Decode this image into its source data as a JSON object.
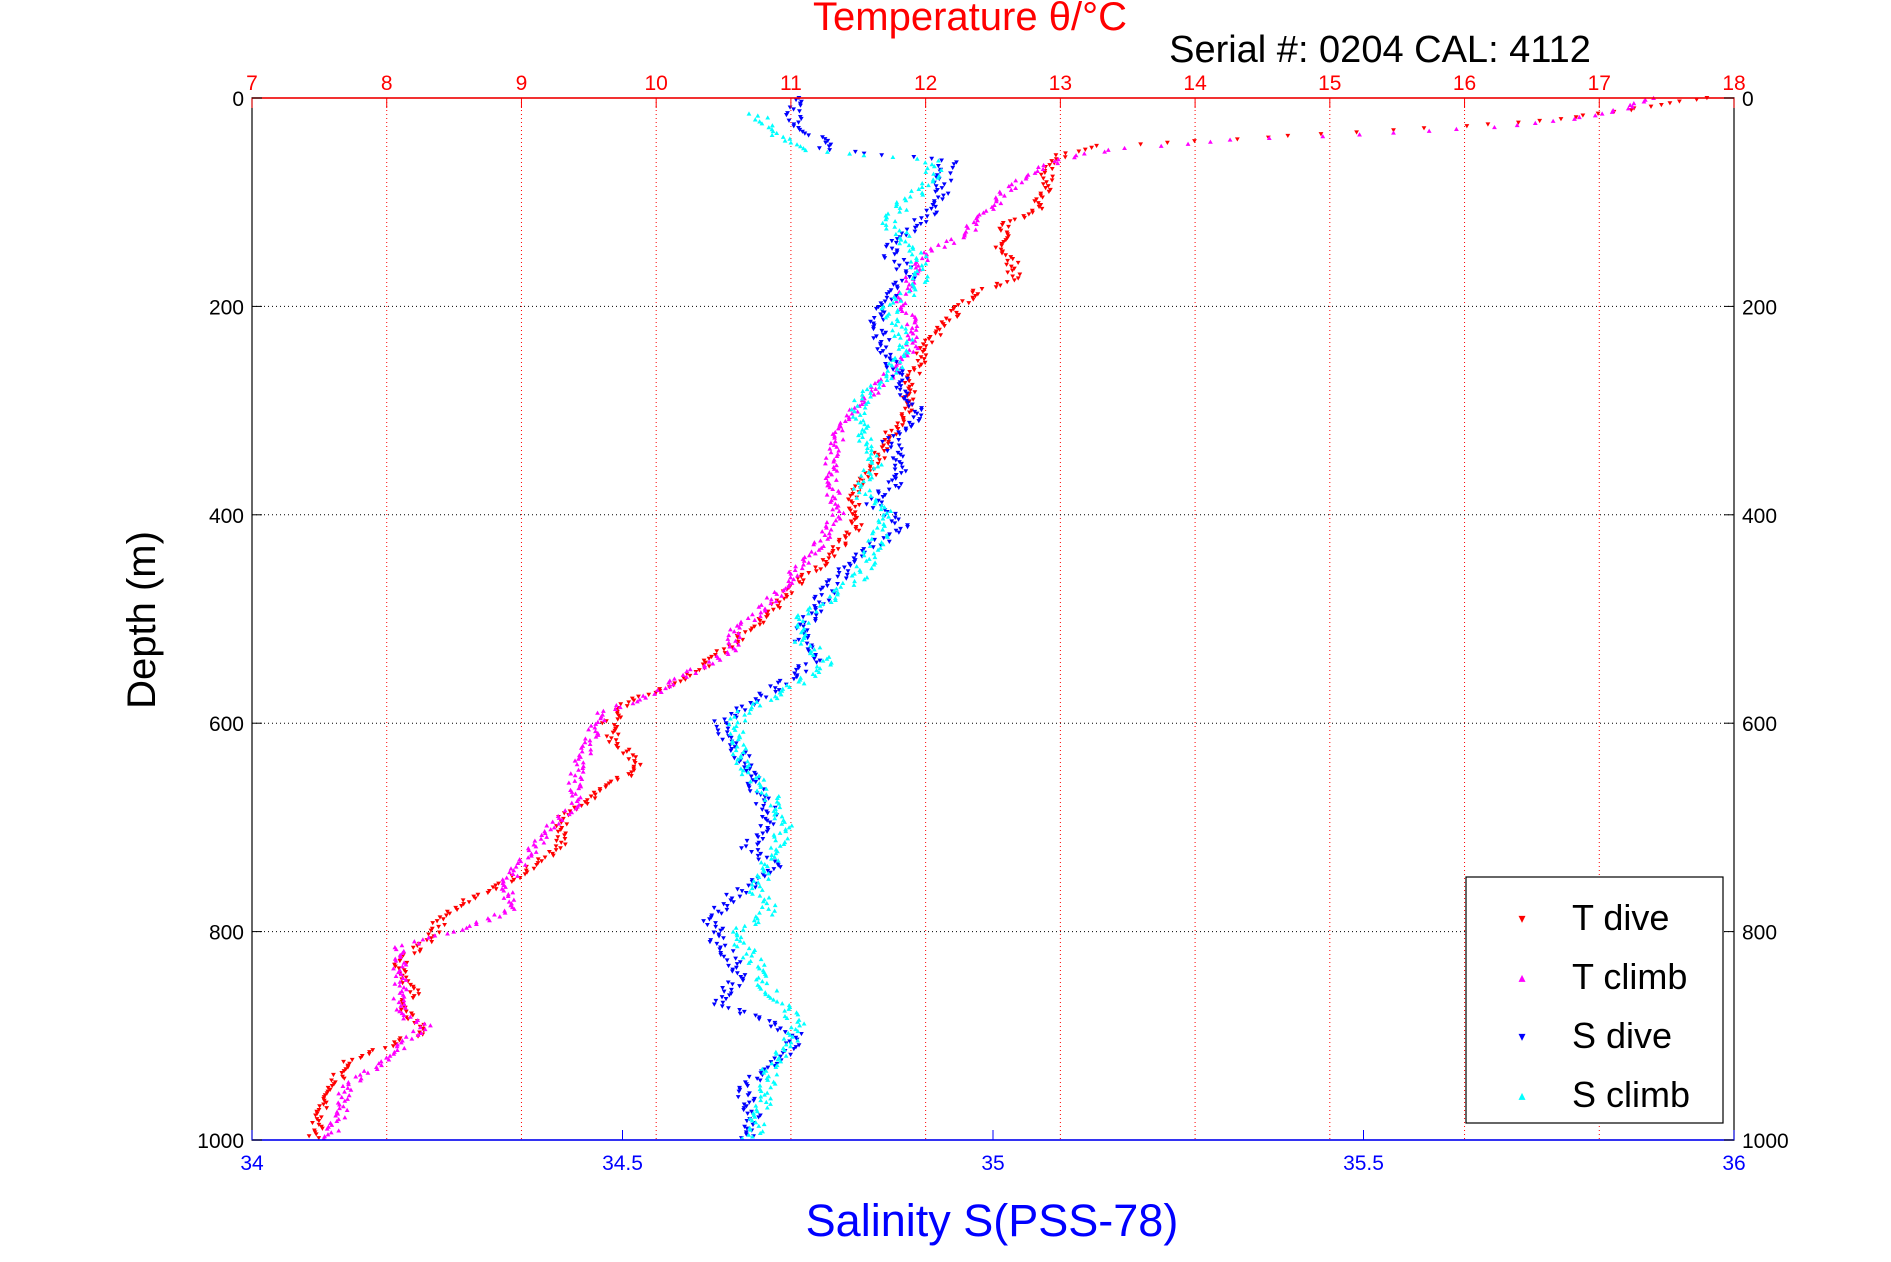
{
  "chart_data": {
    "type": "scatter",
    "title": "Temperature θ/°C",
    "subtitle": "Serial #: 0204  CAL: 4112",
    "ylabel": "Depth (m)",
    "x2label": "Salinity S(PSS-78)",
    "ylim": [
      0,
      1000
    ],
    "y_reversed": true,
    "y_ticks": [
      0,
      200,
      400,
      600,
      800,
      1000
    ],
    "temperature_axis": {
      "position": "top",
      "range": [
        7,
        18
      ],
      "ticks": [
        7,
        8,
        9,
        10,
        11,
        12,
        13,
        14,
        15,
        16,
        17,
        18
      ],
      "color": "#ff0000",
      "grid": "dotted-red"
    },
    "salinity_axis": {
      "position": "bottom",
      "range": [
        34,
        36
      ],
      "ticks": [
        "34",
        "34.5",
        "35",
        "35.5",
        "36"
      ],
      "color": "#0000ff"
    },
    "depth_grid": "dotted-black",
    "legend": {
      "position": "bottom-right",
      "entries": [
        "T dive",
        "T climb",
        "S dive",
        "S climb"
      ]
    },
    "series": [
      {
        "name": "T dive",
        "axis": "temperature",
        "color": "#ff0000",
        "marker": "triangle-down",
        "points": [
          [
            17.8,
            0
          ],
          [
            17.3,
            10
          ],
          [
            17.0,
            15
          ],
          [
            16.6,
            22
          ],
          [
            16.0,
            27
          ],
          [
            15.2,
            33
          ],
          [
            14.5,
            38
          ],
          [
            13.8,
            43
          ],
          [
            13.3,
            46
          ],
          [
            13.0,
            55
          ],
          [
            12.9,
            70
          ],
          [
            12.9,
            90
          ],
          [
            12.8,
            110
          ],
          [
            12.6,
            120
          ],
          [
            12.55,
            140
          ],
          [
            12.65,
            160
          ],
          [
            12.65,
            175
          ],
          [
            12.4,
            185
          ],
          [
            12.3,
            195
          ],
          [
            12.2,
            210
          ],
          [
            12.0,
            240
          ],
          [
            11.9,
            270
          ],
          [
            11.85,
            300
          ],
          [
            11.7,
            330
          ],
          [
            11.6,
            360
          ],
          [
            11.45,
            380
          ],
          [
            11.5,
            410
          ],
          [
            11.3,
            440
          ],
          [
            11.0,
            470
          ],
          [
            10.8,
            500
          ],
          [
            10.6,
            520
          ],
          [
            10.2,
            560
          ],
          [
            9.8,
            580
          ],
          [
            9.65,
            600
          ],
          [
            9.7,
            620
          ],
          [
            9.9,
            640
          ],
          [
            9.6,
            665
          ],
          [
            9.3,
            690
          ],
          [
            9.3,
            720
          ],
          [
            9.0,
            745
          ],
          [
            8.6,
            770
          ],
          [
            8.4,
            790
          ],
          [
            8.3,
            810
          ],
          [
            8.1,
            830
          ],
          [
            8.2,
            860
          ],
          [
            8.1,
            875
          ],
          [
            8.3,
            895
          ],
          [
            8.0,
            910
          ],
          [
            7.7,
            925
          ],
          [
            7.6,
            950
          ],
          [
            7.5,
            980
          ],
          [
            7.45,
            1000
          ]
        ]
      },
      {
        "name": "T climb",
        "axis": "temperature",
        "color": "#ff00ff",
        "marker": "triangle-up",
        "points": [
          [
            17.4,
            0
          ],
          [
            17.2,
            10
          ],
          [
            16.8,
            20
          ],
          [
            16.2,
            28
          ],
          [
            15.2,
            35
          ],
          [
            14.3,
            40
          ],
          [
            13.5,
            48
          ],
          [
            13.1,
            55
          ],
          [
            12.8,
            70
          ],
          [
            12.6,
            90
          ],
          [
            12.45,
            110
          ],
          [
            12.3,
            130
          ],
          [
            12.0,
            150
          ],
          [
            11.9,
            170
          ],
          [
            11.8,
            195
          ],
          [
            11.9,
            210
          ],
          [
            11.9,
            240
          ],
          [
            11.7,
            270
          ],
          [
            11.4,
            310
          ],
          [
            11.3,
            340
          ],
          [
            11.3,
            370
          ],
          [
            11.35,
            400
          ],
          [
            11.2,
            430
          ],
          [
            11.0,
            460
          ],
          [
            10.8,
            490
          ],
          [
            10.6,
            510
          ],
          [
            10.55,
            530
          ],
          [
            10.0,
            570
          ],
          [
            9.6,
            590
          ],
          [
            9.5,
            620
          ],
          [
            9.4,
            650
          ],
          [
            9.4,
            680
          ],
          [
            9.2,
            700
          ],
          [
            9.1,
            720
          ],
          [
            8.9,
            750
          ],
          [
            8.9,
            780
          ],
          [
            8.5,
            800
          ],
          [
            8.1,
            815
          ],
          [
            8.1,
            850
          ],
          [
            8.1,
            880
          ],
          [
            8.3,
            890
          ],
          [
            7.9,
            930
          ],
          [
            7.7,
            950
          ],
          [
            7.65,
            980
          ],
          [
            7.55,
            1000
          ]
        ]
      },
      {
        "name": "S dive",
        "axis": "salinity",
        "color": "#0000ff",
        "marker": "triangle-down",
        "points": [
          [
            34.74,
            0
          ],
          [
            34.73,
            20
          ],
          [
            34.78,
            50
          ],
          [
            34.94,
            60
          ],
          [
            34.93,
            90
          ],
          [
            34.92,
            110
          ],
          [
            34.88,
            130
          ],
          [
            34.86,
            150
          ],
          [
            34.89,
            170
          ],
          [
            34.86,
            190
          ],
          [
            34.84,
            220
          ],
          [
            34.86,
            250
          ],
          [
            34.88,
            280
          ],
          [
            34.9,
            310
          ],
          [
            34.86,
            330
          ],
          [
            34.88,
            360
          ],
          [
            34.84,
            390
          ],
          [
            34.88,
            410
          ],
          [
            34.82,
            440
          ],
          [
            34.78,
            470
          ],
          [
            34.75,
            500
          ],
          [
            34.74,
            520
          ],
          [
            34.76,
            540
          ],
          [
            34.7,
            570
          ],
          [
            34.63,
            600
          ],
          [
            34.66,
            630
          ],
          [
            34.68,
            660
          ],
          [
            34.7,
            690
          ],
          [
            34.67,
            720
          ],
          [
            34.71,
            740
          ],
          [
            34.64,
            770
          ],
          [
            34.62,
            790
          ],
          [
            34.63,
            810
          ],
          [
            34.66,
            840
          ],
          [
            34.63,
            870
          ],
          [
            34.74,
            900
          ],
          [
            34.72,
            920
          ],
          [
            34.66,
            950
          ],
          [
            34.68,
            980
          ],
          [
            34.67,
            1000
          ]
        ]
      },
      {
        "name": "S climb",
        "axis": "salinity",
        "color": "#00ffff",
        "marker": "triangle-up",
        "points": [
          [
            34.68,
            15
          ],
          [
            34.7,
            30
          ],
          [
            34.74,
            50
          ],
          [
            34.92,
            60
          ],
          [
            34.92,
            80
          ],
          [
            34.88,
            100
          ],
          [
            34.86,
            120
          ],
          [
            34.9,
            150
          ],
          [
            34.9,
            180
          ],
          [
            34.86,
            200
          ],
          [
            34.88,
            230
          ],
          [
            34.87,
            260
          ],
          [
            34.82,
            290
          ],
          [
            34.82,
            320
          ],
          [
            34.84,
            350
          ],
          [
            34.82,
            380
          ],
          [
            34.86,
            400
          ],
          [
            34.84,
            430
          ],
          [
            34.82,
            460
          ],
          [
            34.78,
            480
          ],
          [
            34.74,
            500
          ],
          [
            34.74,
            520
          ],
          [
            34.78,
            540
          ],
          [
            34.74,
            560
          ],
          [
            34.66,
            590
          ],
          [
            34.65,
            610
          ],
          [
            34.66,
            640
          ],
          [
            34.7,
            670
          ],
          [
            34.72,
            700
          ],
          [
            34.7,
            730
          ],
          [
            34.68,
            760
          ],
          [
            34.7,
            780
          ],
          [
            34.65,
            800
          ],
          [
            34.68,
            830
          ],
          [
            34.7,
            860
          ],
          [
            34.74,
            890
          ],
          [
            34.72,
            910
          ],
          [
            34.7,
            930
          ],
          [
            34.69,
            960
          ],
          [
            34.68,
            990
          ],
          [
            34.67,
            1000
          ]
        ]
      }
    ]
  }
}
